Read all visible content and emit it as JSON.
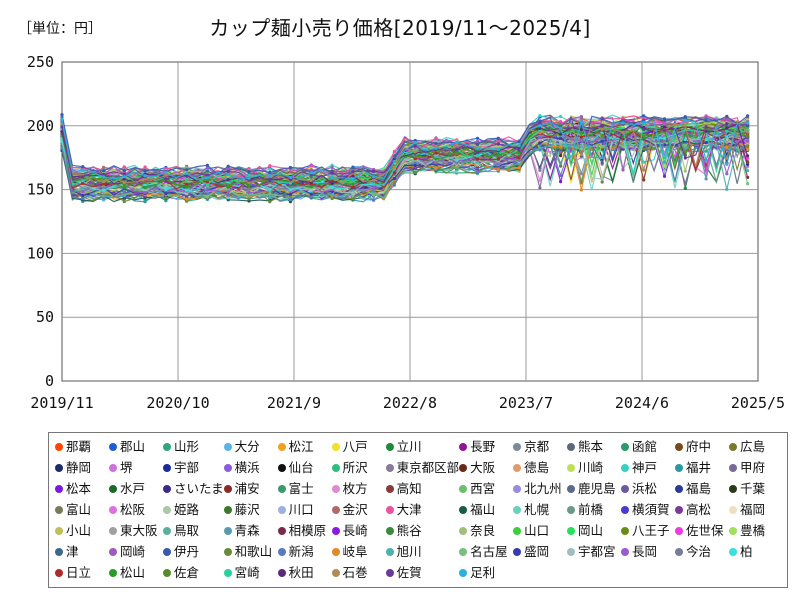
{
  "unit_label": "［単位：円］",
  "chart_data": {
    "type": "line",
    "title": "カップ麺小売り価格[2019/11～2025/4]",
    "xlabel": "",
    "ylabel": "",
    "x_ticks": [
      "2019/11",
      "2020/10",
      "2021/9",
      "2022/8",
      "2023/7",
      "2024/6",
      "2025/5"
    ],
    "y_ticks": [
      0,
      50,
      100,
      150,
      200,
      250
    ],
    "ylim": [
      0,
      250
    ],
    "grid": true,
    "legend_position": "bottom",
    "series": [
      {
        "name": "那覇",
        "color": "#ff4500"
      },
      {
        "name": "郡山",
        "color": "#1f5fd6"
      },
      {
        "name": "山形",
        "color": "#2ea87a"
      },
      {
        "name": "大分",
        "color": "#5ab4e6"
      },
      {
        "name": "松江",
        "color": "#f0a21e"
      },
      {
        "name": "八戸",
        "color": "#f2e02a"
      },
      {
        "name": "立川",
        "color": "#1e8a3c"
      },
      {
        "name": "長野",
        "color": "#8c1a8c"
      },
      {
        "name": "京都",
        "color": "#7a8a9a"
      },
      {
        "name": "熊本",
        "color": "#5a6a7a"
      },
      {
        "name": "函館",
        "color": "#2a9a6a"
      },
      {
        "name": "府中",
        "color": "#7a4a1a"
      },
      {
        "name": "広島",
        "color": "#7a7a2a"
      },
      {
        "name": "静岡",
        "color": "#1a2a6a"
      },
      {
        "name": "堺",
        "color": "#d070e0"
      },
      {
        "name": "宇部",
        "color": "#1a2a9a"
      },
      {
        "name": "横浜",
        "color": "#8a5ae0"
      },
      {
        "name": "仙台",
        "color": "#111111"
      },
      {
        "name": "所沢",
        "color": "#2ac07a"
      },
      {
        "name": "東京都区部",
        "color": "#8a7a9a"
      },
      {
        "name": "大阪",
        "color": "#6a2a1a"
      },
      {
        "name": "徳島",
        "color": "#e09a6a"
      },
      {
        "name": "川崎",
        "color": "#c0e05a"
      },
      {
        "name": "神戸",
        "color": "#3ad0c0"
      },
      {
        "name": "福井",
        "color": "#2a9aa0"
      },
      {
        "name": "甲府",
        "color": "#7a6a9a"
      },
      {
        "name": "松本",
        "color": "#7a1ae0"
      },
      {
        "name": "水戸",
        "color": "#1a6a2a"
      },
      {
        "name": "さいたま",
        "color": "#3a2a8a"
      },
      {
        "name": "浦安",
        "color": "#8a2a2a"
      },
      {
        "name": "富士",
        "color": "#3a9a6a"
      },
      {
        "name": "枚方",
        "color": "#e08ad0"
      },
      {
        "name": "高知",
        "color": "#8a3a3a"
      },
      {
        "name": "西宮",
        "color": "#6ac06a"
      },
      {
        "name": "北九州",
        "color": "#9a8ae0"
      },
      {
        "name": "鹿児島",
        "color": "#5a6a8a"
      },
      {
        "name": "浜松",
        "color": "#6a5aa0"
      },
      {
        "name": "福島",
        "color": "#2a3a9a"
      },
      {
        "name": "千葉",
        "color": "#2a3a1a"
      },
      {
        "name": "富山",
        "color": "#7a7a5a"
      },
      {
        "name": "松阪",
        "color": "#e070e0"
      },
      {
        "name": "姫路",
        "color": "#a8c8a8"
      },
      {
        "name": "藤沢",
        "color": "#3a7a2a"
      },
      {
        "name": "川口",
        "color": "#9ab0e0"
      },
      {
        "name": "金沢",
        "color": "#b06a6a"
      },
      {
        "name": "大津",
        "color": "#f050a0"
      },
      {
        "name": "福山",
        "color": "#1a5a4a"
      },
      {
        "name": "札幌",
        "color": "#6ad0c0"
      },
      {
        "name": "前橋",
        "color": "#6a9a8a"
      },
      {
        "name": "横須賀",
        "color": "#4a3ad0"
      },
      {
        "name": "高松",
        "color": "#7a3a9a"
      },
      {
        "name": "福岡",
        "color": "#f0e0c0"
      },
      {
        "name": "小山",
        "color": "#c0c05a"
      },
      {
        "name": "東大阪",
        "color": "#a0a0a0"
      },
      {
        "name": "鳥取",
        "color": "#5ab0a0"
      },
      {
        "name": "青森",
        "color": "#5a9ab0"
      },
      {
        "name": "相模原",
        "color": "#7a2a4a"
      },
      {
        "name": "長崎",
        "color": "#8a1ae0"
      },
      {
        "name": "熊谷",
        "color": "#3a8a3a"
      },
      {
        "name": "奈良",
        "color": "#a0c07a"
      },
      {
        "name": "山口",
        "color": "#3ad03a"
      },
      {
        "name": "岡山",
        "color": "#2ae05a"
      },
      {
        "name": "八王子",
        "color": "#6a8a1a"
      },
      {
        "name": "佐世保",
        "color": "#f03ae0"
      },
      {
        "name": "豊橋",
        "color": "#a0e05a"
      },
      {
        "name": "津",
        "color": "#3a6a8a"
      },
      {
        "name": "岡崎",
        "color": "#a05ac0"
      },
      {
        "name": "伊丹",
        "color": "#3a5ab0"
      },
      {
        "name": "和歌山",
        "color": "#6a8a3a"
      },
      {
        "name": "新潟",
        "color": "#5a7ac0"
      },
      {
        "name": "岐阜",
        "color": "#e08a2a"
      },
      {
        "name": "旭川",
        "color": "#4ab0b0"
      },
      {
        "name": "名古屋",
        "color": "#7ac07a"
      },
      {
        "name": "盛岡",
        "color": "#3a3ab0"
      },
      {
        "name": "宇都宮",
        "color": "#a0c0c0"
      },
      {
        "name": "長岡",
        "color": "#9a5ad0"
      },
      {
        "name": "今治",
        "color": "#7a7a9a"
      },
      {
        "name": "柏",
        "color": "#3ae0e0"
      },
      {
        "name": "日立",
        "color": "#b02a2a"
      },
      {
        "name": "松山",
        "color": "#2a9a2a"
      },
      {
        "name": "佐倉",
        "color": "#5a8a2a"
      },
      {
        "name": "宮崎",
        "color": "#2ad0a0"
      },
      {
        "name": "秋田",
        "color": "#5a2a7a"
      },
      {
        "name": "石巻",
        "color": "#b08a5a"
      },
      {
        "name": "佐賀",
        "color": "#6a3a9a"
      },
      {
        "name": "足利",
        "color": "#2ab0e0"
      }
    ]
  }
}
